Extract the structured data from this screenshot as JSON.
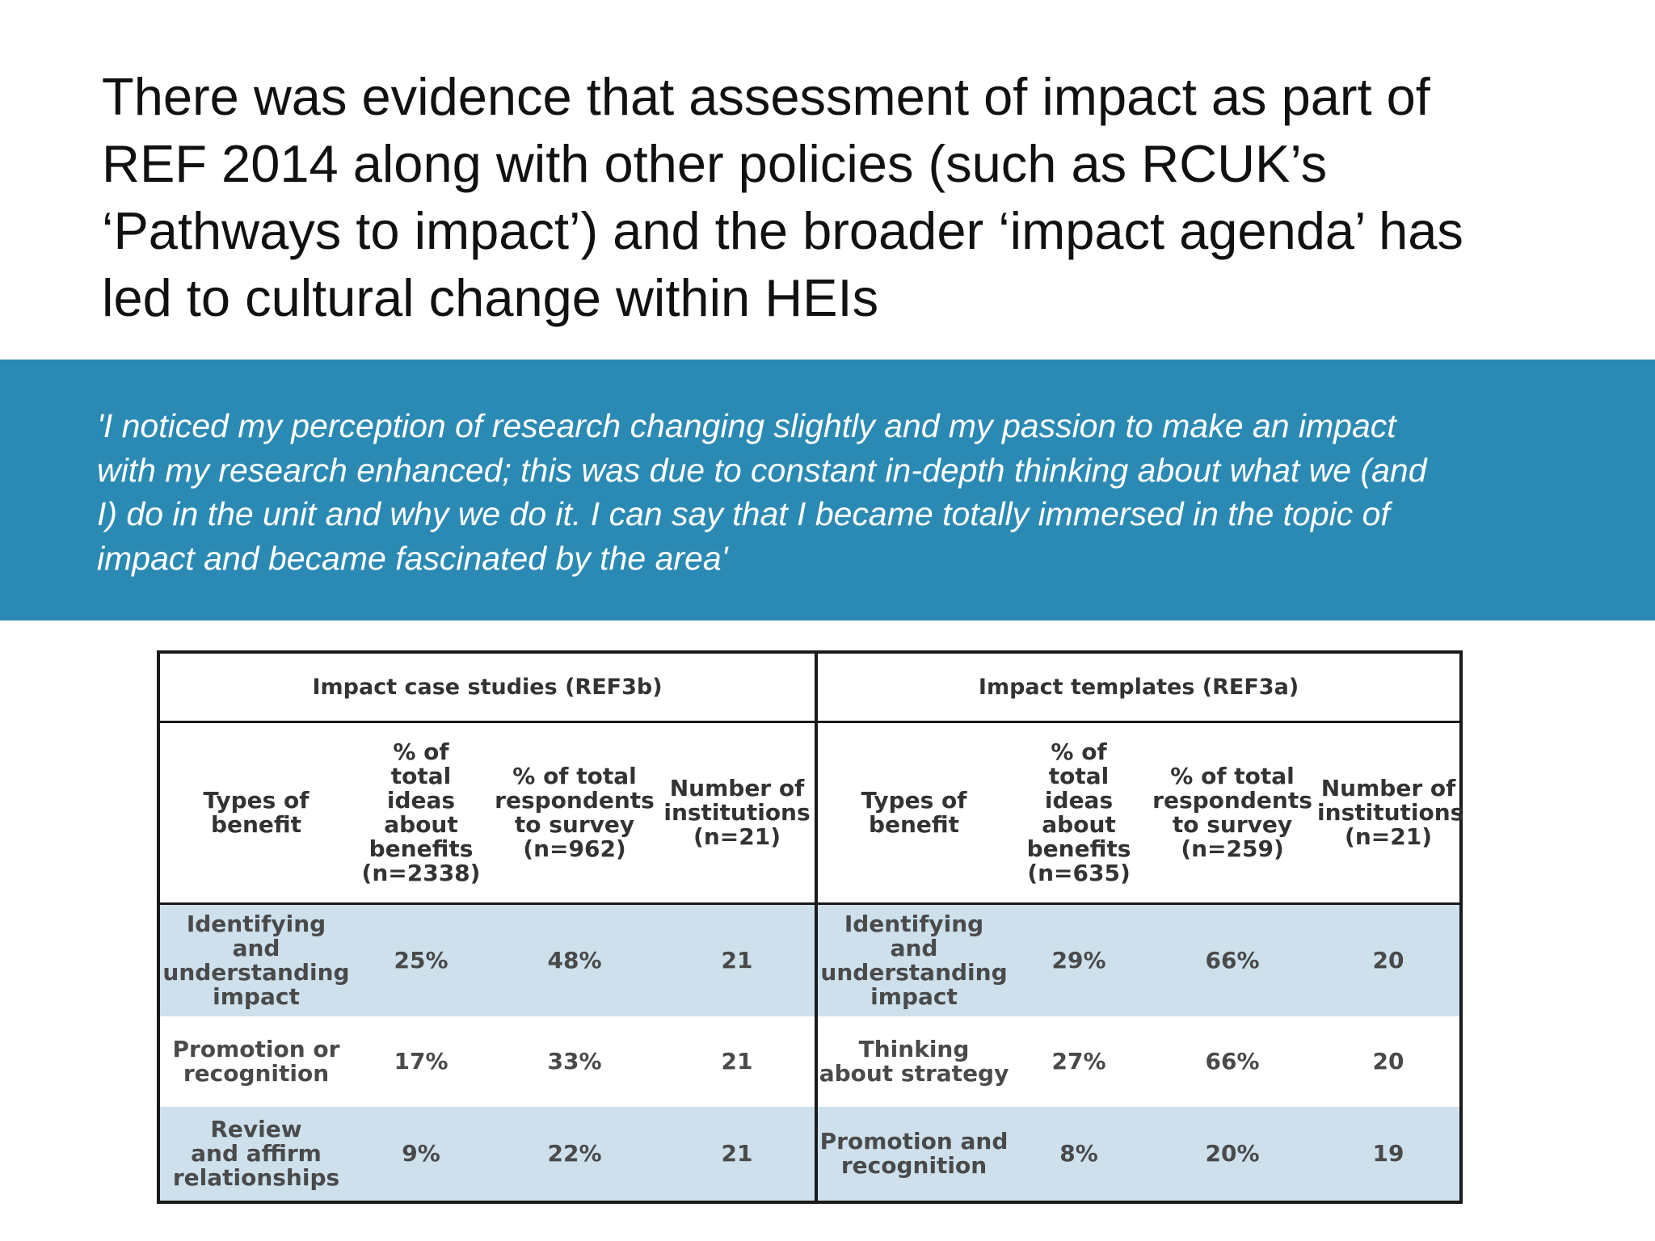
{
  "slide": {
    "headline": "There was evidence that assessment of impact as part of\nREF 2014 along with other policies (such as RCUK’s\n‘Pathways to impact’) and the broader ‘impact agenda’ has\nled to cultural change within HEIs",
    "quote": "'I noticed my perception of research changing slightly and my passion to make an impact\nwith my research enhanced; this was due to constant in-depth thinking about what we (and\nI) do in the unit and why we do it. I can say that I became totally immersed in the topic of\nimpact and became fascinated by the area'",
    "colors": {
      "quote_band": "#2b8ab3",
      "row_shade": "#cde0ec"
    }
  },
  "table": {
    "groups": [
      "Impact case studies (REF3b)",
      "Impact templates (REF3a)"
    ],
    "columns": {
      "left": [
        "Types of\nbenefit",
        "% of\ntotal\nideas\nabout\nbenefits\n(n=2338)",
        "% of total\nrespondents\nto survey\n(n=962)",
        "Number of\ninstitutions\n(n=21)"
      ],
      "right": [
        "Types of\nbenefit",
        "% of\ntotal\nideas\nabout\nbenefits\n(n=635)",
        "% of total\nrespondents\nto survey\n(n=259)",
        "Number of\ninstitutions\n(n=21)"
      ]
    },
    "rows": [
      {
        "left": [
          "Identifying\nand\nunderstanding\nimpact",
          "25%",
          "48%",
          "21"
        ],
        "right": [
          "Identifying\nand\nunderstanding\nimpact",
          "29%",
          "66%",
          "20"
        ]
      },
      {
        "left": [
          "Promotion or\nrecognition",
          "17%",
          "33%",
          "21"
        ],
        "right": [
          "Thinking\nabout strategy",
          "27%",
          "66%",
          "20"
        ]
      },
      {
        "left": [
          "Review\nand affirm\nrelationships",
          "9%",
          "22%",
          "21"
        ],
        "right": [
          "Promotion and\nrecognition",
          "8%",
          "20%",
          "19"
        ]
      }
    ]
  }
}
